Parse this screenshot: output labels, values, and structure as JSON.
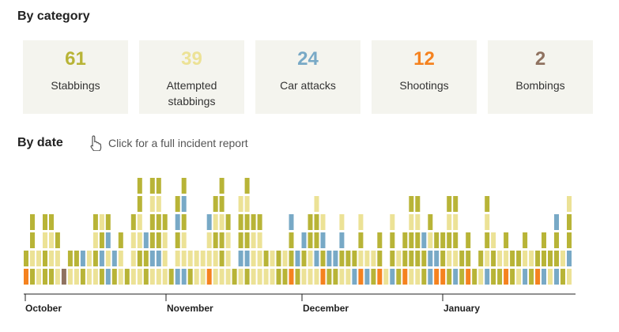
{
  "headings": {
    "by_category": "By category",
    "by_date": "By date"
  },
  "hint": {
    "text": "Click for a full incident report",
    "icon": "pointer-hand-icon"
  },
  "categories": [
    {
      "count": "61",
      "label": "Stabbings",
      "color": "#b8b437"
    },
    {
      "count": "39",
      "label": "Attempted stabbings",
      "color": "#ece296"
    },
    {
      "count": "24",
      "label": "Car attacks",
      "color": "#78a9c6"
    },
    {
      "count": "12",
      "label": "Shootings",
      "color": "#f5821f"
    },
    {
      "count": "2",
      "label": "Bombings",
      "color": "#8f7260"
    }
  ],
  "chart_data": {
    "type": "bar",
    "x_tick_labels": [
      "October",
      "November",
      "December",
      "January"
    ],
    "note": "",
    "columns": [
      [
        "S",
        "S"
      ],
      [
        "S",
        "A",
        "S",
        "S"
      ],
      [
        "A",
        "A"
      ],
      [
        "S",
        "S",
        "A",
        "S"
      ],
      [
        "S",
        "A",
        "A",
        "S"
      ],
      [
        "A",
        "A",
        "S"
      ],
      [
        "B"
      ],
      [
        "A",
        "S"
      ],
      [
        "A",
        "S"
      ],
      [
        "S",
        "C"
      ],
      [
        "A",
        "A"
      ],
      [
        "A",
        "S",
        "A",
        "S"
      ],
      [
        "S",
        "C",
        "S",
        "A"
      ],
      [
        "C",
        "A",
        "C",
        "S"
      ],
      [
        "S",
        "C"
      ],
      [
        "A",
        "A",
        "S"
      ],
      [
        "S"
      ],
      [
        "A",
        "A",
        "A",
        "S"
      ],
      [
        "A",
        "S",
        "A",
        "A",
        "S",
        "S"
      ],
      [
        "S",
        "S",
        "C"
      ],
      [
        "A",
        "C",
        "S",
        "S",
        "A",
        "S"
      ],
      [
        "A",
        "C",
        "S",
        "S",
        "A",
        "S"
      ],
      [
        "A",
        "A",
        "A",
        "S"
      ],
      [
        "S"
      ],
      [
        "C",
        "A",
        "S",
        "C",
        "S"
      ],
      [
        "C",
        "A",
        "A",
        "S",
        "C",
        "S"
      ],
      [
        "S",
        "A"
      ],
      [
        "A",
        "A"
      ],
      [
        "A",
        "A"
      ],
      [
        "A",
        "A",
        "A",
        "C"
      ],
      [
        "A",
        "A",
        "S",
        "A",
        "S"
      ],
      [
        "A",
        "S",
        "S",
        "A",
        "S",
        "S"
      ],
      [
        "A",
        "A",
        "A",
        "S"
      ],
      [
        "S"
      ],
      [
        "A",
        "C",
        "S",
        "S",
        "A"
      ],
      [
        "S",
        "C",
        "S",
        "S",
        "A",
        "S"
      ],
      [
        "A",
        "A",
        "A",
        "S"
      ],
      [
        "A",
        "A",
        "A",
        "S"
      ],
      [
        "A",
        "S"
      ],
      [
        "A",
        "A"
      ],
      [
        "S",
        "S"
      ],
      [
        "S",
        "A"
      ],
      [
        "C",
        "S",
        "S",
        "C"
      ],
      [
        "S",
        "C"
      ],
      [
        "A",
        "S",
        "C"
      ],
      [
        "A",
        "A",
        "S",
        "S"
      ],
      [
        "A",
        "C",
        "S",
        "S",
        "A"
      ],
      [
        "A",
        "S",
        "C",
        "A"
      ],
      [
        "S",
        "C"
      ],
      [
        "S",
        "C"
      ],
      [
        "A",
        "S",
        "C",
        "A"
      ],
      [
        "A",
        "S"
      ],
      [
        "C",
        "S"
      ],
      [
        "C",
        "A",
        "S",
        "A"
      ],
      [
        "C",
        "A"
      ],
      [
        "S",
        "A"
      ],
      [
        "C",
        "S",
        "S"
      ],
      [
        "A"
      ],
      [
        "C",
        "S",
        "S",
        "A"
      ],
      [
        "S",
        "A"
      ],
      [
        "C",
        "S",
        "S"
      ],
      [
        "A",
        "S",
        "S",
        "A",
        "S"
      ],
      [
        "A",
        "S",
        "S",
        "A",
        "S"
      ],
      [
        "S",
        "S",
        "C"
      ],
      [
        "C",
        "C",
        "A",
        "S"
      ],
      [
        "C",
        "C",
        "S"
      ],
      [
        "A",
        "S",
        "S"
      ],
      [
        "S",
        "A",
        "S",
        "A",
        "S"
      ],
      [
        "C",
        "A",
        "S",
        "A",
        "S"
      ],
      [
        "S",
        "S"
      ],
      [
        "A",
        "S",
        "S"
      ],
      [
        "S"
      ],
      [
        "A",
        "S"
      ],
      [
        "C",
        "A",
        "S",
        "A",
        "S"
      ],
      [
        "S",
        "S",
        "A"
      ],
      [
        "S",
        "A"
      ],
      [
        "S",
        "A",
        "S"
      ],
      [
        "S",
        "S"
      ],
      [
        "A",
        "S"
      ],
      [
        "C",
        "A",
        "S"
      ],
      [
        "S",
        "A"
      ],
      [
        "A",
        "S"
      ],
      [
        "C",
        "S",
        "S"
      ],
      [
        "A",
        "S"
      ],
      [
        "C",
        "S",
        "S",
        "C"
      ],
      [
        "S",
        "A"
      ],
      [
        "A",
        "C",
        "S",
        "S",
        "A"
      ]
    ]
  }
}
